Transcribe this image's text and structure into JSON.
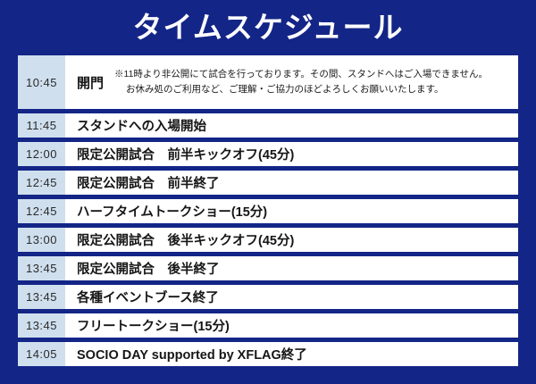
{
  "title": "タイムスケジュール",
  "colors": {
    "background": "#132586",
    "row_bg": "#ffffff",
    "time_cell": "#cfdfee",
    "title_text": "#ffffff",
    "body_text": "#1b1b1b"
  },
  "schedule": {
    "rows": [
      {
        "time": "10:45",
        "event": "開門",
        "note_line1": "※11時より非公開にて試合を行っております。その間、スタンドへはご入場できません。",
        "note_line2": "お休み処のご利用など、ご理解・ご協力のほどよろしくお願いいたします。"
      },
      {
        "time": "11:45",
        "event": "スタンドへの入場開始"
      },
      {
        "time": "12:00",
        "event": "限定公開試合　前半キックオフ(45分)"
      },
      {
        "time": "12:45",
        "event": "限定公開試合　前半終了"
      },
      {
        "time": "12:45",
        "event": "ハーフタイムトークショー(15分)"
      },
      {
        "time": "13:00",
        "event": "限定公開試合　後半キックオフ(45分)"
      },
      {
        "time": "13:45",
        "event": "限定公開試合　後半終了"
      },
      {
        "time": "13:45",
        "event": "各種イベントブース終了"
      },
      {
        "time": "13:45",
        "event": "フリートークショー(15分)"
      },
      {
        "time": "14:05",
        "event": "SOCIO DAY supported by XFLAG終了"
      }
    ]
  }
}
